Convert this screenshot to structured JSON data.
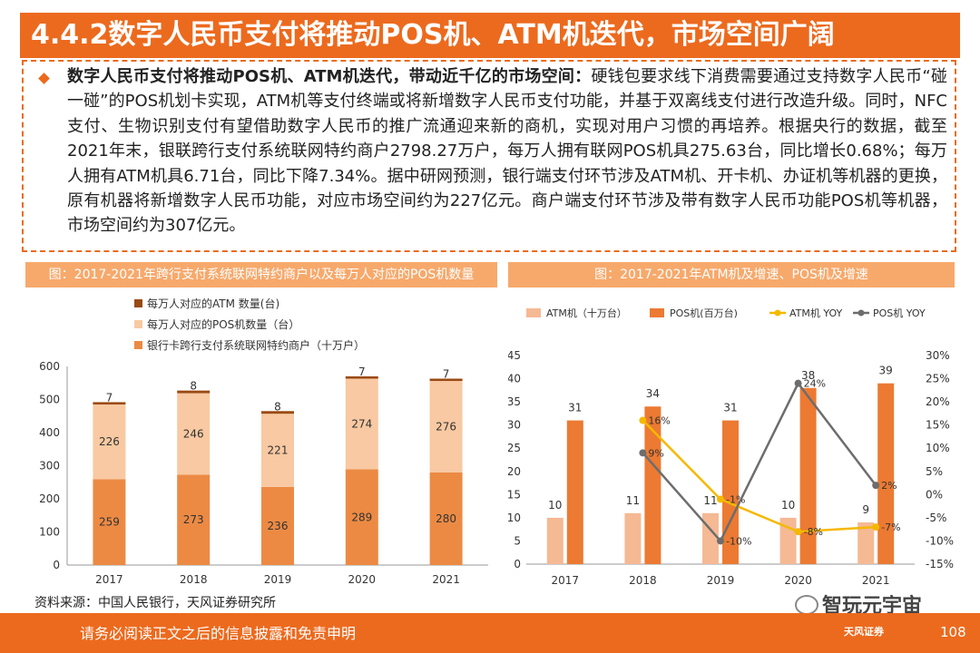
{
  "header": {
    "title": "4.4.2数字人民币支付将推动POS机、ATM机迭代，市场空间广阔"
  },
  "summary": {
    "lead": "数字人民币支付将推动POS机、ATM机迭代，带动近千亿的市场空间：",
    "body": "硬钱包要求线下消费需要通过支持数字人民币“碰一碰”的POS机划卡实现，ATM机等支付终端或将新增数字人民币支付功能，并基于双离线支付进行改造升级。同时，NFC支付、生物识别支付有望借助数字人民币的推广流通迎来新的商机，实现对用户习惯的再培养。根据央行的数据，截至2021年末，银联跨行支付系统联网特约商户2798.27万户，每万人拥有联网POS机具275.63台，同比增长0.68%；每万人拥有ATM机具6.71台，同比下降7.34%。据中研网预测，银行端支付环节涉及ATM机、开卡机、办证机等机器的更换，原有机器将新增数字人民币功能，对应市场空间约为227亿元。商户端支付环节涉及带有数字人民币功能POS机等机器，市场空间约为307亿元。"
  },
  "figure1": {
    "caption": "图：2017-2021年跨行支付系统联网特约商户以及每万人对应的POS机数量"
  },
  "figure2": {
    "caption": "图：2017-2021年ATM机及增速、POS机及增速"
  },
  "chart_data": [
    {
      "type": "bar",
      "stacked": true,
      "categories": [
        "2017",
        "2018",
        "2019",
        "2020",
        "2021"
      ],
      "series": [
        {
          "name": "银行卡跨行支付系统联网特约商户（十万户）",
          "values": [
            259,
            273,
            236,
            289,
            280
          ],
          "color": "#ec8a44"
        },
        {
          "name": "每万人对应的POS机数量（台）",
          "values": [
            226,
            246,
            221,
            274,
            276
          ],
          "color": "#f8c9a2"
        },
        {
          "name": "每万人对应的ATM 数量(台)",
          "values": [
            7,
            8,
            8,
            7,
            7
          ],
          "color": "#9a4a14"
        }
      ],
      "ylim": [
        0,
        600
      ],
      "yticks": [
        0,
        100,
        200,
        300,
        400,
        500,
        600
      ],
      "legend": "top-left",
      "grid": false
    },
    {
      "type": "bar+line",
      "categories": [
        "2017",
        "2018",
        "2019",
        "2020",
        "2021"
      ],
      "bar_series": [
        {
          "name": "ATM机（十万台）",
          "values": [
            10,
            11,
            11,
            10,
            9
          ],
          "color": "#f5b994"
        },
        {
          "name": "POS机(百万台)",
          "values": [
            31,
            34,
            31,
            38,
            39
          ],
          "color": "#ec7a32"
        }
      ],
      "line_series": [
        {
          "name": "ATM机 YOY",
          "values": [
            null,
            16,
            -1,
            -8,
            -7
          ],
          "labels": [
            "",
            "16%",
            "-1%",
            "-8%",
            "-7%"
          ],
          "color": "#f5b800"
        },
        {
          "name": "POS机 YOY",
          "values": [
            null,
            9,
            -10,
            24,
            2
          ],
          "labels": [
            "",
            "9%",
            "-10%",
            "24%",
            "2%"
          ],
          "color": "#6d6d6d"
        }
      ],
      "ylim_left": [
        0,
        45
      ],
      "yticks_left": [
        0,
        5,
        10,
        15,
        20,
        25,
        30,
        35,
        40,
        45
      ],
      "ylim_right": [
        -15,
        30
      ],
      "yticks_right": [
        "-15%",
        "-10%",
        "-5%",
        "0%",
        "5%",
        "10%",
        "15%",
        "20%",
        "25%",
        "30%"
      ],
      "legend": "top",
      "grid": false
    }
  ],
  "source": "资料来源：中国人民银行，天风证券研究所",
  "footer": {
    "disclaimer": "请务必阅读正文之后的信息披露和免责申明",
    "page": "108",
    "watermark": "智玩元宇宙",
    "logo": "天风证券"
  }
}
